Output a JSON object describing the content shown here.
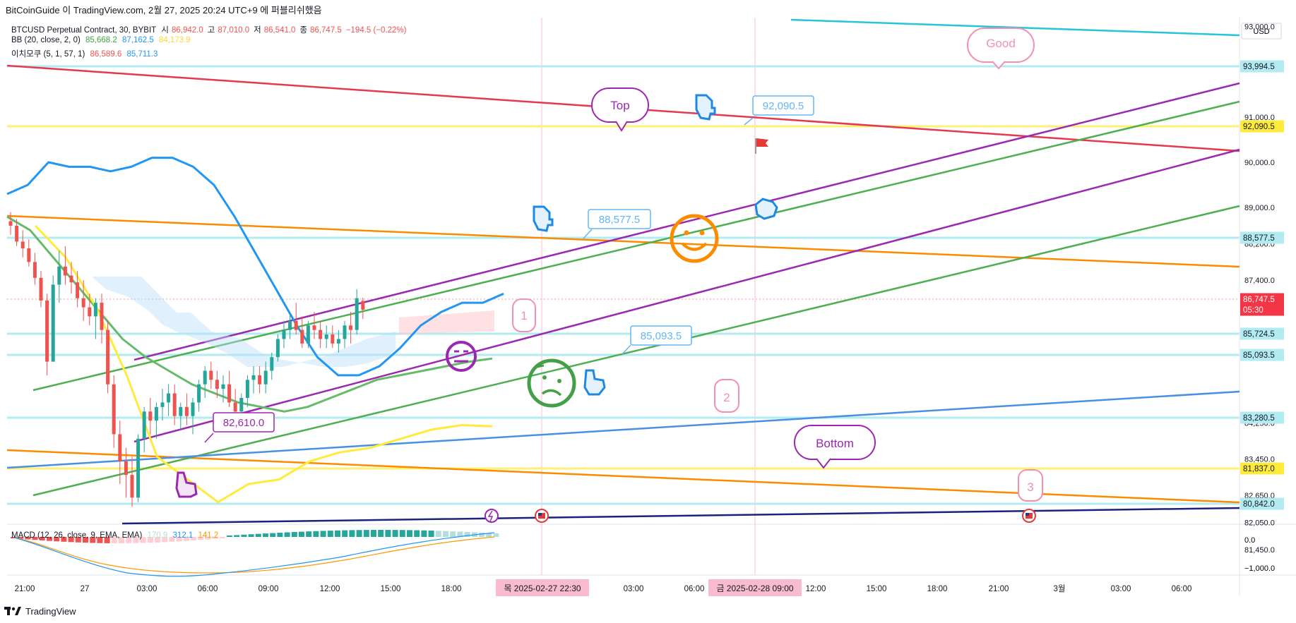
{
  "header": {
    "text": "BitCoinGuide 이 TradingView.com, 2월 27, 2025 20:24 UTC+9 에 퍼블리쉬했음"
  },
  "legend": {
    "symbol": "BTCUSD Perpetual Contract, 30, BYBIT",
    "o_label": "시",
    "o": "86,942.0",
    "h_label": "고",
    "h": "87,010.0",
    "l_label": "저",
    "l": "86,541.0",
    "c_label": "종",
    "c": "86,747.5",
    "chg": "−194.5 (−0.22%)",
    "bb_label": "BB (20, close, 2, 0)",
    "bb_mid": "85,668.2",
    "bb_up": "87,162.5",
    "bb_low": "84,173.9",
    "ichi_label": "이치모쿠 (5, 1, 57, 1)",
    "ichi_a": "86,589.6",
    "ichi_b": "85,711.3"
  },
  "macd": {
    "label": "MACD (12, 26, close, 9, EMA, EMA)",
    "hist": "170.9",
    "macd": "312.1",
    "signal": "141.2"
  },
  "brand": "TradingView",
  "colors": {
    "up": "#26a69a",
    "down": "#ef5350",
    "bb_mid": "#66bb6a",
    "bb_up": "#2196f3",
    "ichi_a": "#ef5350",
    "ichi_b": "#2196f3",
    "yellow": "#ffeb3b",
    "orange": "#ff9800",
    "purple": "#9c27b0"
  },
  "chart_data": {
    "type": "candlestick",
    "currency": "USD",
    "ylim": [
      80000,
      94800
    ],
    "y_ticks": [
      "93,000.0",
      "91,000.0",
      "90,000.0",
      "89,000.0",
      "88,200.0",
      "87,400.0",
      "84,250.0",
      "83,450.0",
      "82,650.0",
      "82,050.0",
      "81,450.0"
    ],
    "x_ticks": [
      "21:00",
      "27",
      "03:00",
      "06:00",
      "09:00",
      "12:00",
      "15:00",
      "18:00",
      "03:00",
      "06:00",
      "12:00",
      "15:00",
      "18:00",
      "21:00",
      "3월",
      "03:00",
      "06:00"
    ],
    "crosshair_dates": [
      "목 2025-02-27 22:30",
      "금 2025-02-28 09:00"
    ],
    "price_tags": [
      {
        "value": "93,994.5",
        "style": "light"
      },
      {
        "value": "92,090.5",
        "style": "yellow"
      },
      {
        "value": "88,577.5",
        "style": "light"
      },
      {
        "value": "86,747.5",
        "sub": "05:30",
        "style": "last"
      },
      {
        "value": "85,724.5",
        "style": "light"
      },
      {
        "value": "85,093.5",
        "style": "light"
      },
      {
        "value": "83,280.5",
        "style": "light"
      },
      {
        "value": "81,837.0",
        "style": "yellow"
      },
      {
        "value": "80,842.0",
        "style": "light"
      }
    ],
    "candles_ohlc": [
      [
        88700,
        88900,
        88400,
        88600
      ],
      [
        88600,
        88750,
        88150,
        88250
      ],
      [
        88250,
        88500,
        87900,
        88100
      ],
      [
        88100,
        88300,
        87700,
        87800
      ],
      [
        87800,
        88000,
        87300,
        87450
      ],
      [
        87450,
        87600,
        86800,
        86950
      ],
      [
        86950,
        87100,
        85300,
        85600
      ],
      [
        85600,
        87500,
        85800,
        87300
      ],
      [
        87300,
        88050,
        86900,
        87700
      ],
      [
        87700,
        88150,
        87300,
        87500
      ],
      [
        87500,
        87800,
        87100,
        87350
      ],
      [
        87350,
        87600,
        86800,
        87000
      ],
      [
        87000,
        87400,
        86500,
        86800
      ],
      [
        86800,
        87100,
        86400,
        86600
      ],
      [
        86600,
        87000,
        86100,
        86900
      ],
      [
        86900,
        87100,
        86000,
        86300
      ],
      [
        86300,
        86500,
        84900,
        85100
      ],
      [
        85100,
        85300,
        83700,
        84000
      ],
      [
        84000,
        84300,
        82900,
        83400
      ],
      [
        83400,
        83700,
        82600,
        83100
      ],
      [
        83100,
        83500,
        82400,
        82600
      ],
      [
        82600,
        84000,
        82500,
        83900
      ],
      [
        83900,
        84600,
        83600,
        84500
      ],
      [
        84500,
        84800,
        84000,
        84300
      ],
      [
        84300,
        84700,
        83900,
        84600
      ],
      [
        84600,
        85000,
        84300,
        84700
      ],
      [
        84700,
        85100,
        84400,
        84900
      ],
      [
        84900,
        85100,
        84200,
        84400
      ],
      [
        84400,
        84700,
        84100,
        84600
      ],
      [
        84600,
        84900,
        84200,
        84400
      ],
      [
        84400,
        84800,
        84000,
        84700
      ],
      [
        84700,
        85200,
        84500,
        85100
      ],
      [
        85100,
        85500,
        84800,
        85400
      ],
      [
        85400,
        85600,
        85000,
        85200
      ],
      [
        85200,
        85400,
        84800,
        85000
      ],
      [
        85000,
        85300,
        84700,
        85100
      ],
      [
        85100,
        85400,
        84600,
        84700
      ],
      [
        84700,
        85000,
        84300,
        84500
      ],
      [
        84500,
        84900,
        84300,
        84800
      ],
      [
        84800,
        85300,
        84600,
        85200
      ],
      [
        85200,
        85500,
        84900,
        85300
      ],
      [
        85300,
        85500,
        84900,
        85100
      ],
      [
        85100,
        85600,
        84900,
        85400
      ],
      [
        85400,
        85800,
        85200,
        85700
      ],
      [
        85700,
        86200,
        85600,
        86100
      ],
      [
        86100,
        86500,
        85900,
        86300
      ],
      [
        86300,
        86700,
        86100,
        86500
      ],
      [
        86500,
        86900,
        86200,
        86300
      ],
      [
        86300,
        86600,
        85900,
        86000
      ],
      [
        86000,
        86500,
        85900,
        86400
      ],
      [
        86400,
        86700,
        86100,
        86300
      ],
      [
        86300,
        86500,
        85900,
        86100
      ],
      [
        86100,
        86400,
        85900,
        86200
      ],
      [
        86200,
        86400,
        85900,
        86000
      ],
      [
        86000,
        86300,
        85800,
        86100
      ],
      [
        86100,
        86500,
        85900,
        86400
      ],
      [
        86400,
        86700,
        86000,
        86300
      ],
      [
        86300,
        87200,
        86200,
        87000
      ],
      [
        86942,
        87010,
        86541,
        86747.5
      ]
    ],
    "bb_upper": [
      89300,
      89500,
      90000,
      89900,
      89900,
      89800,
      89900,
      90100,
      90100,
      89900,
      89500,
      88800,
      88000,
      87200,
      86400,
      85700,
      85300,
      85300,
      85500,
      85900,
      86400,
      86700,
      86900,
      86900,
      87100
    ],
    "bb_middle": [
      88800,
      88500,
      87900,
      87300,
      86700,
      86100,
      85700,
      85400,
      85100,
      84900,
      84700,
      84600,
      84500,
      84600,
      84800,
      85000,
      85200,
      85300,
      85400,
      85500,
      85600,
      85668.2
    ],
    "tenkan": [
      88600,
      87900,
      86800,
      85300,
      83500,
      83000,
      82500,
      82900,
      83000,
      83400,
      83600,
      83700,
      83900,
      84100,
      84200,
      84173.9
    ],
    "annotations": [
      {
        "text": "Top",
        "color": "#9c27b0"
      },
      {
        "text": "Good",
        "color": "#f48fb1"
      },
      {
        "text": "Bottom",
        "color": "#9c27b0"
      },
      {
        "text": "1",
        "color": "#f48fb1"
      },
      {
        "text": "2",
        "color": "#f48fb1"
      },
      {
        "text": "3",
        "color": "#f48fb1"
      },
      {
        "text": "92,090.5",
        "color": "#64b5f6"
      },
      {
        "text": "88,577.5",
        "color": "#64b5f6"
      },
      {
        "text": "85,093.5",
        "color": "#64b5f6"
      },
      {
        "text": "82,610.0",
        "color": "#9c27b0"
      }
    ],
    "macd_ticks": [
      "0.0",
      "−1,000.0"
    ]
  }
}
